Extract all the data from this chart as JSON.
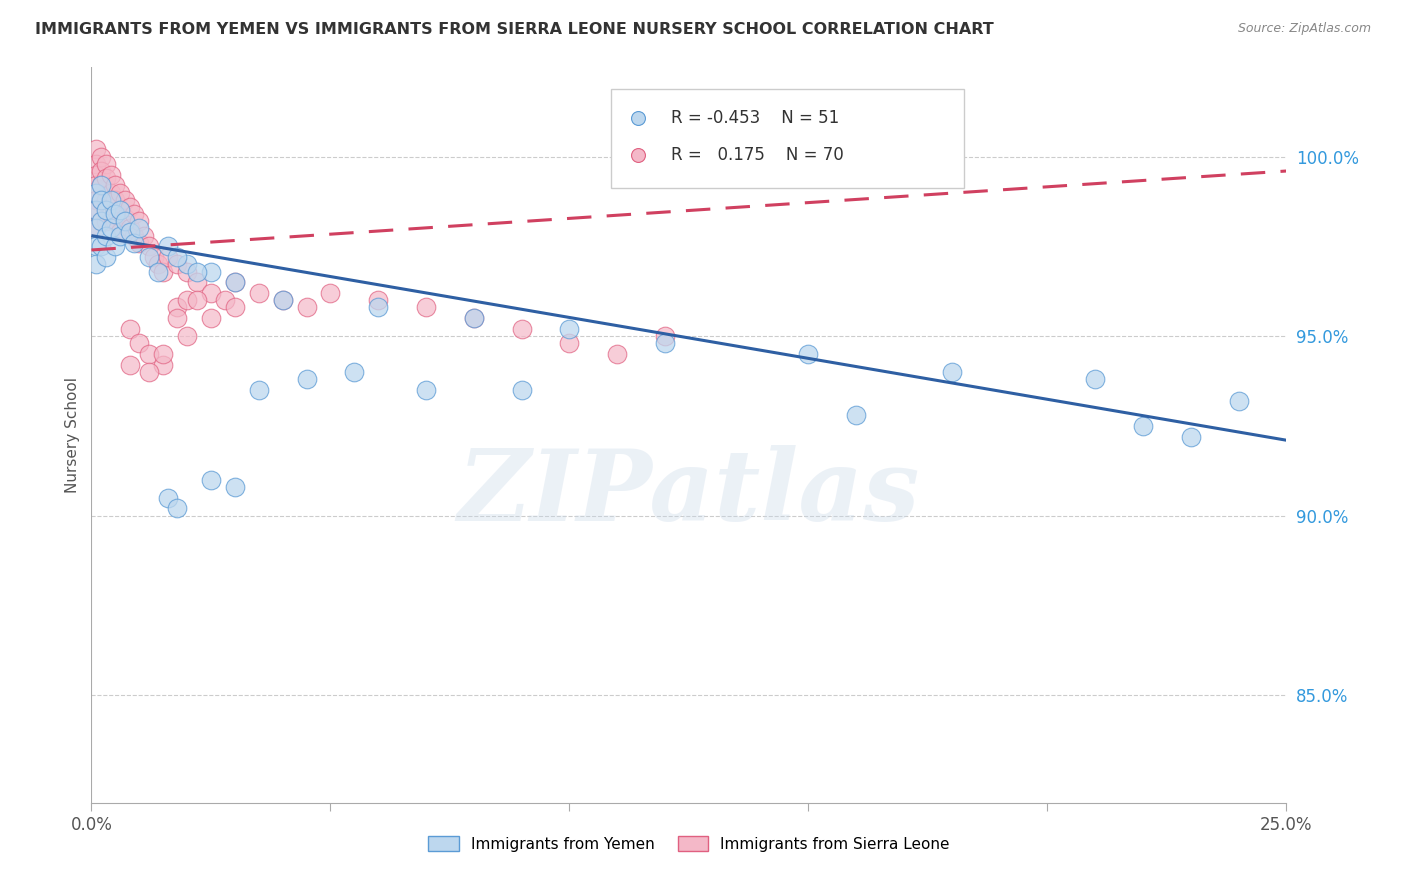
{
  "title": "IMMIGRANTS FROM YEMEN VS IMMIGRANTS FROM SIERRA LEONE NURSERY SCHOOL CORRELATION CHART",
  "source": "Source: ZipAtlas.com",
  "ylabel": "Nursery School",
  "legend_blue_r": "-0.453",
  "legend_blue_n": "51",
  "legend_pink_r": "0.175",
  "legend_pink_n": "70",
  "legend_label_blue": "Immigrants from Yemen",
  "legend_label_pink": "Immigrants from Sierra Leone",
  "blue_fill": "#bdd7ee",
  "blue_edge": "#5b9bd5",
  "pink_fill": "#f4b8c8",
  "pink_edge": "#e06080",
  "blue_line": "#2e5fa3",
  "pink_line": "#d04060",
  "watermark_text": "ZIPatlas",
  "xmin": 0.0,
  "xmax": 0.25,
  "ymin": 0.82,
  "ymax": 1.025,
  "yticks": [
    0.85,
    0.9,
    0.95,
    1.0
  ],
  "ytick_labels": [
    "85.0%",
    "90.0%",
    "95.0%",
    "100.0%"
  ],
  "blue_line_x": [
    0.0,
    0.25
  ],
  "blue_line_y": [
    0.978,
    0.921
  ],
  "pink_line_x": [
    0.0,
    0.25
  ],
  "pink_line_y": [
    0.974,
    0.996
  ],
  "blue_x": [
    0.001,
    0.001,
    0.001,
    0.001,
    0.001,
    0.002,
    0.002,
    0.002,
    0.002,
    0.003,
    0.003,
    0.003,
    0.004,
    0.004,
    0.005,
    0.005,
    0.006,
    0.006,
    0.007,
    0.008,
    0.009,
    0.01,
    0.012,
    0.014,
    0.016,
    0.02,
    0.025,
    0.03,
    0.018,
    0.022,
    0.04,
    0.06,
    0.08,
    0.1,
    0.12,
    0.15,
    0.18,
    0.21,
    0.24,
    0.016,
    0.018,
    0.025,
    0.03,
    0.035,
    0.045,
    0.055,
    0.07,
    0.09,
    0.16,
    0.22,
    0.23
  ],
  "blue_y": [
    0.99,
    0.985,
    0.98,
    0.975,
    0.97,
    0.992,
    0.988,
    0.982,
    0.975,
    0.985,
    0.978,
    0.972,
    0.988,
    0.98,
    0.984,
    0.975,
    0.985,
    0.978,
    0.982,
    0.979,
    0.976,
    0.98,
    0.972,
    0.968,
    0.975,
    0.97,
    0.968,
    0.965,
    0.972,
    0.968,
    0.96,
    0.958,
    0.955,
    0.952,
    0.948,
    0.945,
    0.94,
    0.938,
    0.932,
    0.905,
    0.902,
    0.91,
    0.908,
    0.935,
    0.938,
    0.94,
    0.935,
    0.935,
    0.928,
    0.925,
    0.922
  ],
  "pink_x": [
    0.001,
    0.001,
    0.001,
    0.001,
    0.001,
    0.001,
    0.001,
    0.002,
    0.002,
    0.002,
    0.002,
    0.002,
    0.003,
    0.003,
    0.003,
    0.003,
    0.004,
    0.004,
    0.004,
    0.005,
    0.005,
    0.005,
    0.006,
    0.006,
    0.006,
    0.007,
    0.007,
    0.008,
    0.008,
    0.009,
    0.009,
    0.01,
    0.01,
    0.011,
    0.012,
    0.013,
    0.014,
    0.015,
    0.016,
    0.018,
    0.02,
    0.022,
    0.025,
    0.028,
    0.03,
    0.035,
    0.04,
    0.045,
    0.05,
    0.06,
    0.07,
    0.08,
    0.09,
    0.1,
    0.11,
    0.12,
    0.008,
    0.01,
    0.012,
    0.015,
    0.018,
    0.02,
    0.025,
    0.018,
    0.022,
    0.03,
    0.015,
    0.02,
    0.012,
    0.008
  ],
  "pink_y": [
    1.002,
    0.998,
    0.995,
    0.992,
    0.988,
    0.985,
    0.98,
    1.0,
    0.996,
    0.992,
    0.988,
    0.982,
    0.998,
    0.994,
    0.988,
    0.982,
    0.995,
    0.99,
    0.984,
    0.992,
    0.988,
    0.982,
    0.99,
    0.985,
    0.979,
    0.988,
    0.983,
    0.986,
    0.98,
    0.984,
    0.978,
    0.982,
    0.976,
    0.978,
    0.975,
    0.972,
    0.97,
    0.968,
    0.972,
    0.97,
    0.968,
    0.965,
    0.962,
    0.96,
    0.965,
    0.962,
    0.96,
    0.958,
    0.962,
    0.96,
    0.958,
    0.955,
    0.952,
    0.948,
    0.945,
    0.95,
    0.952,
    0.948,
    0.945,
    0.942,
    0.958,
    0.96,
    0.955,
    0.955,
    0.96,
    0.958,
    0.945,
    0.95,
    0.94,
    0.942
  ]
}
